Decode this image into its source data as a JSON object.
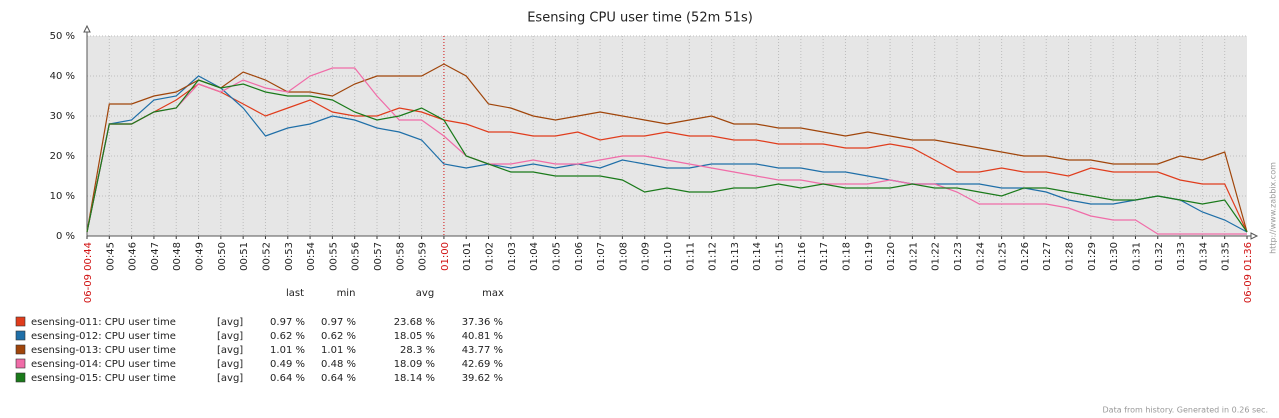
{
  "chart_data": {
    "type": "line",
    "title": "Esensing CPU user time (52m 51s)",
    "categories": [
      "06-09 00:44",
      "00:45",
      "00:46",
      "00:47",
      "00:48",
      "00:49",
      "00:50",
      "00:51",
      "00:52",
      "00:53",
      "00:54",
      "00:55",
      "00:56",
      "00:57",
      "00:58",
      "00:59",
      "01:00",
      "01:01",
      "01:02",
      "01:03",
      "01:04",
      "01:05",
      "01:06",
      "01:07",
      "01:08",
      "01:09",
      "01:10",
      "01:11",
      "01:12",
      "01:13",
      "01:14",
      "01:15",
      "01:16",
      "01:17",
      "01:18",
      "01:19",
      "01:20",
      "01:21",
      "01:22",
      "01:23",
      "01:24",
      "01:25",
      "01:26",
      "01:27",
      "01:28",
      "01:29",
      "01:30",
      "01:31",
      "01:32",
      "01:33",
      "01:34",
      "01:35",
      "06-09 01:36"
    ],
    "ylim": [
      0,
      50
    ],
    "yticks": [
      {
        "value": 0,
        "label": "0 %"
      },
      {
        "value": 10,
        "label": "10 %"
      },
      {
        "value": 20,
        "label": "20 %"
      },
      {
        "value": 30,
        "label": "30 %"
      },
      {
        "value": 40,
        "label": "40 %"
      },
      {
        "value": 50,
        "label": "50 %"
      }
    ],
    "grid": true,
    "highlight_color": "#d01010",
    "series": [
      {
        "name": "esensing-011: CPU user time",
        "color": "#e03c1c",
        "values": [
          1,
          28,
          28,
          31,
          34,
          38,
          36,
          33,
          30,
          32,
          34,
          31,
          30,
          30,
          32,
          31,
          29,
          28,
          26,
          26,
          25,
          25,
          26,
          24,
          25,
          25,
          26,
          25,
          25,
          24,
          24,
          23,
          23,
          23,
          22,
          22,
          23,
          22,
          19,
          16,
          16,
          17,
          16,
          16,
          15,
          17,
          16,
          16,
          16,
          14,
          13,
          13,
          1
        ]
      },
      {
        "name": "esensing-012: CPU user time",
        "color": "#1f6fa8",
        "values": [
          1,
          28,
          29,
          34,
          35,
          40,
          37,
          32,
          25,
          27,
          28,
          30,
          29,
          27,
          26,
          24,
          18,
          17,
          18,
          17,
          18,
          17,
          18,
          17,
          19,
          18,
          17,
          17,
          18,
          18,
          18,
          17,
          17,
          16,
          16,
          15,
          14,
          13,
          13,
          13,
          13,
          12,
          12,
          11,
          9,
          8,
          8,
          9,
          10,
          9,
          6,
          4,
          1
        ]
      },
      {
        "name": "esensing-013: CPU user time",
        "color": "#a0450a",
        "values": [
          1,
          33,
          33,
          35,
          36,
          39,
          37,
          41,
          39,
          36,
          36,
          35,
          38,
          40,
          40,
          40,
          43,
          40,
          33,
          32,
          30,
          29,
          30,
          31,
          30,
          29,
          28,
          29,
          30,
          28,
          28,
          27,
          27,
          26,
          25,
          26,
          25,
          24,
          24,
          23,
          22,
          21,
          20,
          20,
          19,
          19,
          18,
          18,
          18,
          20,
          19,
          21,
          1
        ]
      },
      {
        "name": "esensing-014: CPU user time",
        "color": "#f06ca8",
        "values": [
          1,
          28,
          28,
          31,
          32,
          38,
          36,
          39,
          37,
          36,
          40,
          42,
          42,
          35,
          29,
          29,
          25,
          20,
          18,
          18,
          19,
          18,
          18,
          19,
          20,
          20,
          19,
          18,
          17,
          16,
          15,
          14,
          14,
          13,
          13,
          13,
          14,
          13,
          13,
          11,
          8,
          8,
          8,
          8,
          7,
          5,
          4,
          4,
          0.5,
          0.5,
          0.5,
          0.5,
          0.5
        ]
      },
      {
        "name": "esensing-015: CPU user time",
        "color": "#1a7a1a",
        "values": [
          1,
          28,
          28,
          31,
          32,
          39,
          37,
          38,
          36,
          35,
          35,
          34,
          31,
          29,
          30,
          32,
          29,
          20,
          18,
          16,
          16,
          15,
          15,
          15,
          14,
          11,
          12,
          11,
          11,
          12,
          12,
          13,
          12,
          13,
          12,
          12,
          12,
          13,
          12,
          12,
          11,
          10,
          12,
          12,
          11,
          10,
          9,
          9,
          10,
          9,
          8,
          9,
          1
        ]
      }
    ],
    "summary": {
      "columns": [
        "last",
        "min",
        "avg",
        "max"
      ],
      "rows": [
        {
          "func": "[avg]",
          "cells": [
            "0.97 %",
            "0.97 %",
            "23.68 %",
            "37.36 %"
          ]
        },
        {
          "func": "[avg]",
          "cells": [
            "0.62 %",
            "0.62 %",
            "18.05 %",
            "40.81 %"
          ]
        },
        {
          "func": "[avg]",
          "cells": [
            "1.01 %",
            "1.01 %",
            "28.3 %",
            "43.77 %"
          ]
        },
        {
          "func": "[avg]",
          "cells": [
            "0.49 %",
            "0.48 %",
            "18.09 %",
            "42.69 %"
          ]
        },
        {
          "func": "[avg]",
          "cells": [
            "0.64 %",
            "0.64 %",
            "18.14 %",
            "39.62 %"
          ]
        }
      ]
    },
    "watermark": "http://www.zabbix.com",
    "footer": "Data from history. Generated in 0.26 sec."
  }
}
